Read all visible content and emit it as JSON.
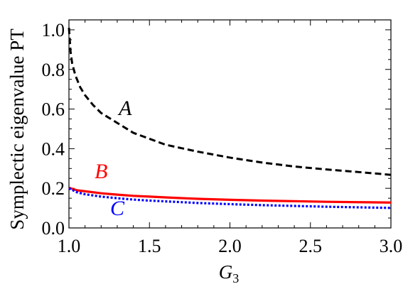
{
  "chart_data": {
    "type": "line",
    "title": "",
    "xlabel": "G",
    "xlabel_subscript": "3",
    "ylabel": "Symplectic eigenvalue PT",
    "xlim": [
      1.0,
      3.0
    ],
    "ylim": [
      0.0,
      1.05
    ],
    "xticks": [
      1.0,
      1.5,
      2.0,
      2.5,
      3.0
    ],
    "xtick_labels": [
      "1.0",
      "1.5",
      "2.0",
      "2.5",
      "3.0"
    ],
    "yticks": [
      0.0,
      0.2,
      0.4,
      0.6,
      0.8,
      1.0
    ],
    "ytick_labels": [
      "0.0",
      "0.2",
      "0.4",
      "0.6",
      "0.8",
      "1.0"
    ],
    "grid": false,
    "legend": "none",
    "series": [
      {
        "name": "A",
        "color": "#000000",
        "dash": "dashed",
        "x": [
          1.0,
          1.01,
          1.02,
          1.04,
          1.07,
          1.1,
          1.15,
          1.2,
          1.3,
          1.4,
          1.5,
          1.6,
          1.8,
          2.0,
          2.2,
          2.4,
          2.6,
          2.8,
          3.0
        ],
        "y": [
          1.01,
          0.89,
          0.83,
          0.77,
          0.71,
          0.67,
          0.62,
          0.58,
          0.53,
          0.48,
          0.45,
          0.42,
          0.385,
          0.355,
          0.33,
          0.31,
          0.295,
          0.282,
          0.268
        ]
      },
      {
        "name": "B",
        "color": "#ff0000",
        "dash": "solid",
        "x": [
          1.0,
          1.05,
          1.1,
          1.2,
          1.3,
          1.4,
          1.5,
          1.6,
          1.8,
          2.0,
          2.2,
          2.4,
          2.6,
          2.8,
          3.0
        ],
        "y": [
          0.203,
          0.19,
          0.185,
          0.175,
          0.168,
          0.162,
          0.158,
          0.154,
          0.147,
          0.142,
          0.138,
          0.135,
          0.132,
          0.13,
          0.128
        ]
      },
      {
        "name": "C",
        "color": "#0000ff",
        "dash": "dotted",
        "x": [
          1.0,
          1.05,
          1.1,
          1.2,
          1.3,
          1.4,
          1.5,
          1.6,
          1.8,
          2.0,
          2.2,
          2.4,
          2.6,
          2.8,
          3.0
        ],
        "y": [
          0.2,
          0.18,
          0.17,
          0.158,
          0.15,
          0.143,
          0.138,
          0.134,
          0.126,
          0.12,
          0.115,
          0.111,
          0.107,
          0.104,
          0.101
        ]
      }
    ],
    "annotations": [
      {
        "text": "A",
        "x": 1.35,
        "y": 0.57,
        "color": "#000000"
      },
      {
        "text": "B",
        "x": 1.2,
        "y": 0.25,
        "color": "#ff0000"
      },
      {
        "text": "C",
        "x": 1.3,
        "y": 0.065,
        "color": "#0000ff"
      }
    ]
  }
}
